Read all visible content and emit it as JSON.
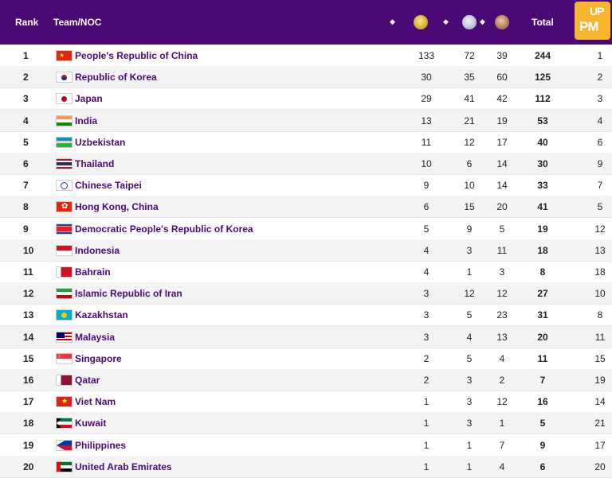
{
  "header": {
    "rank": "Rank",
    "team": "Team/NOC",
    "total": "Total",
    "sort_glyph": "◆",
    "logo_top": "UP",
    "logo_bottom": "PM"
  },
  "rows": [
    {
      "rank": "1",
      "team": "People's Republic of China",
      "gold": "133",
      "silver": "72",
      "bronze": "39",
      "total": "244",
      "rank_by_total": "1",
      "flag": "china"
    },
    {
      "rank": "2",
      "team": "Republic of Korea",
      "gold": "30",
      "silver": "35",
      "bronze": "60",
      "total": "125",
      "rank_by_total": "2",
      "flag": "korea"
    },
    {
      "rank": "3",
      "team": "Japan",
      "gold": "29",
      "silver": "41",
      "bronze": "42",
      "total": "112",
      "rank_by_total": "3",
      "flag": "japan"
    },
    {
      "rank": "4",
      "team": "India",
      "gold": "13",
      "silver": "21",
      "bronze": "19",
      "total": "53",
      "rank_by_total": "4",
      "flag": "india"
    },
    {
      "rank": "5",
      "team": "Uzbekistan",
      "gold": "11",
      "silver": "12",
      "bronze": "17",
      "total": "40",
      "rank_by_total": "6",
      "flag": "uzbekistan"
    },
    {
      "rank": "6",
      "team": "Thailand",
      "gold": "10",
      "silver": "6",
      "bronze": "14",
      "total": "30",
      "rank_by_total": "9",
      "flag": "thailand"
    },
    {
      "rank": "7",
      "team": "Chinese Taipei",
      "gold": "9",
      "silver": "10",
      "bronze": "14",
      "total": "33",
      "rank_by_total": "7",
      "flag": "taipei"
    },
    {
      "rank": "8",
      "team": "Hong Kong, China",
      "gold": "6",
      "silver": "15",
      "bronze": "20",
      "total": "41",
      "rank_by_total": "5",
      "flag": "hongkong"
    },
    {
      "rank": "9",
      "team": "Democratic People's Republic of Korea",
      "gold": "5",
      "silver": "9",
      "bronze": "5",
      "total": "19",
      "rank_by_total": "12",
      "flag": "dprk"
    },
    {
      "rank": "10",
      "team": "Indonesia",
      "gold": "4",
      "silver": "3",
      "bronze": "11",
      "total": "18",
      "rank_by_total": "13",
      "flag": "indonesia"
    },
    {
      "rank": "11",
      "team": "Bahrain",
      "gold": "4",
      "silver": "1",
      "bronze": "3",
      "total": "8",
      "rank_by_total": "18",
      "flag": "bahrain"
    },
    {
      "rank": "12",
      "team": "Islamic Republic of Iran",
      "gold": "3",
      "silver": "12",
      "bronze": "12",
      "total": "27",
      "rank_by_total": "10",
      "flag": "iran"
    },
    {
      "rank": "13",
      "team": "Kazakhstan",
      "gold": "3",
      "silver": "5",
      "bronze": "23",
      "total": "31",
      "rank_by_total": "8",
      "flag": "kazakhstan"
    },
    {
      "rank": "14",
      "team": "Malaysia",
      "gold": "3",
      "silver": "4",
      "bronze": "13",
      "total": "20",
      "rank_by_total": "11",
      "flag": "malaysia"
    },
    {
      "rank": "15",
      "team": "Singapore",
      "gold": "2",
      "silver": "5",
      "bronze": "4",
      "total": "11",
      "rank_by_total": "15",
      "flag": "singapore"
    },
    {
      "rank": "16",
      "team": "Qatar",
      "gold": "2",
      "silver": "3",
      "bronze": "2",
      "total": "7",
      "rank_by_total": "19",
      "flag": "qatar"
    },
    {
      "rank": "17",
      "team": "Viet Nam",
      "gold": "1",
      "silver": "3",
      "bronze": "12",
      "total": "16",
      "rank_by_total": "14",
      "flag": "vietnam"
    },
    {
      "rank": "18",
      "team": "Kuwait",
      "gold": "1",
      "silver": "3",
      "bronze": "1",
      "total": "5",
      "rank_by_total": "21",
      "flag": "kuwait"
    },
    {
      "rank": "19",
      "team": "Philippines",
      "gold": "1",
      "silver": "1",
      "bronze": "7",
      "total": "9",
      "rank_by_total": "17",
      "flag": "philippines"
    },
    {
      "rank": "20",
      "team": "United Arab Emirates",
      "gold": "1",
      "silver": "1",
      "bronze": "4",
      "total": "6",
      "rank_by_total": "20",
      "flag": "uae"
    }
  ]
}
